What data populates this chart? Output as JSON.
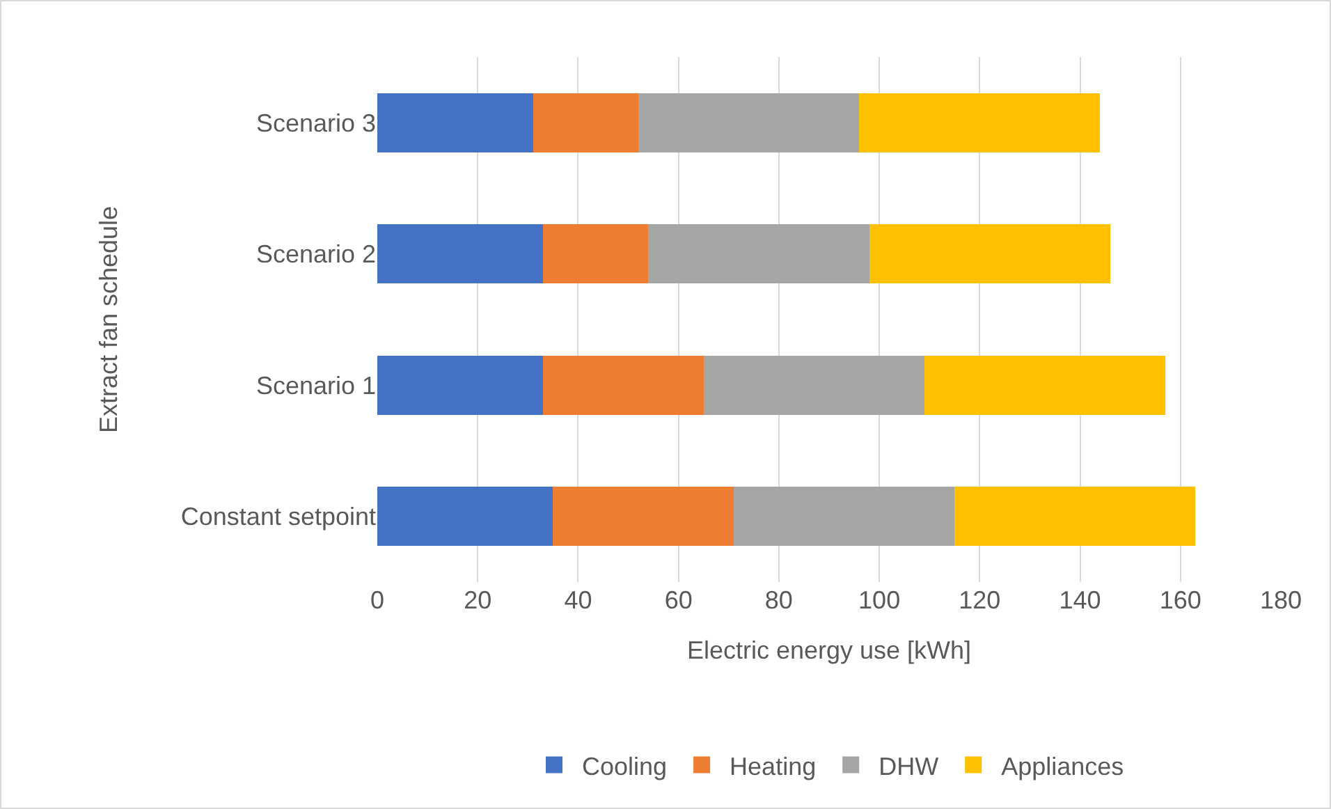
{
  "chart_data": {
    "type": "bar",
    "orientation": "horizontal",
    "stacked": true,
    "xlabel": "Electric energy use [kWh]",
    "ylabel": "Extract fan schedule",
    "categories": [
      "Scenario 3",
      "Scenario 2",
      "Scenario 1",
      "Constant setpoint"
    ],
    "series": [
      {
        "name": "Cooling",
        "color": "#4472c4",
        "values": [
          31,
          33,
          33,
          35
        ]
      },
      {
        "name": "Heating",
        "color": "#ed7d31",
        "values": [
          21,
          21,
          32,
          36
        ]
      },
      {
        "name": "DHW",
        "color": "#a5a5a5",
        "values": [
          44,
          44,
          44,
          44
        ]
      },
      {
        "name": "Appliances",
        "color": "#ffc000",
        "values": [
          48,
          48,
          48,
          48
        ]
      }
    ],
    "xlim": [
      0,
      180
    ],
    "xticks": [
      0,
      20,
      40,
      60,
      80,
      100,
      120,
      140,
      160,
      180
    ],
    "grid": "x",
    "legend": "bottom"
  }
}
